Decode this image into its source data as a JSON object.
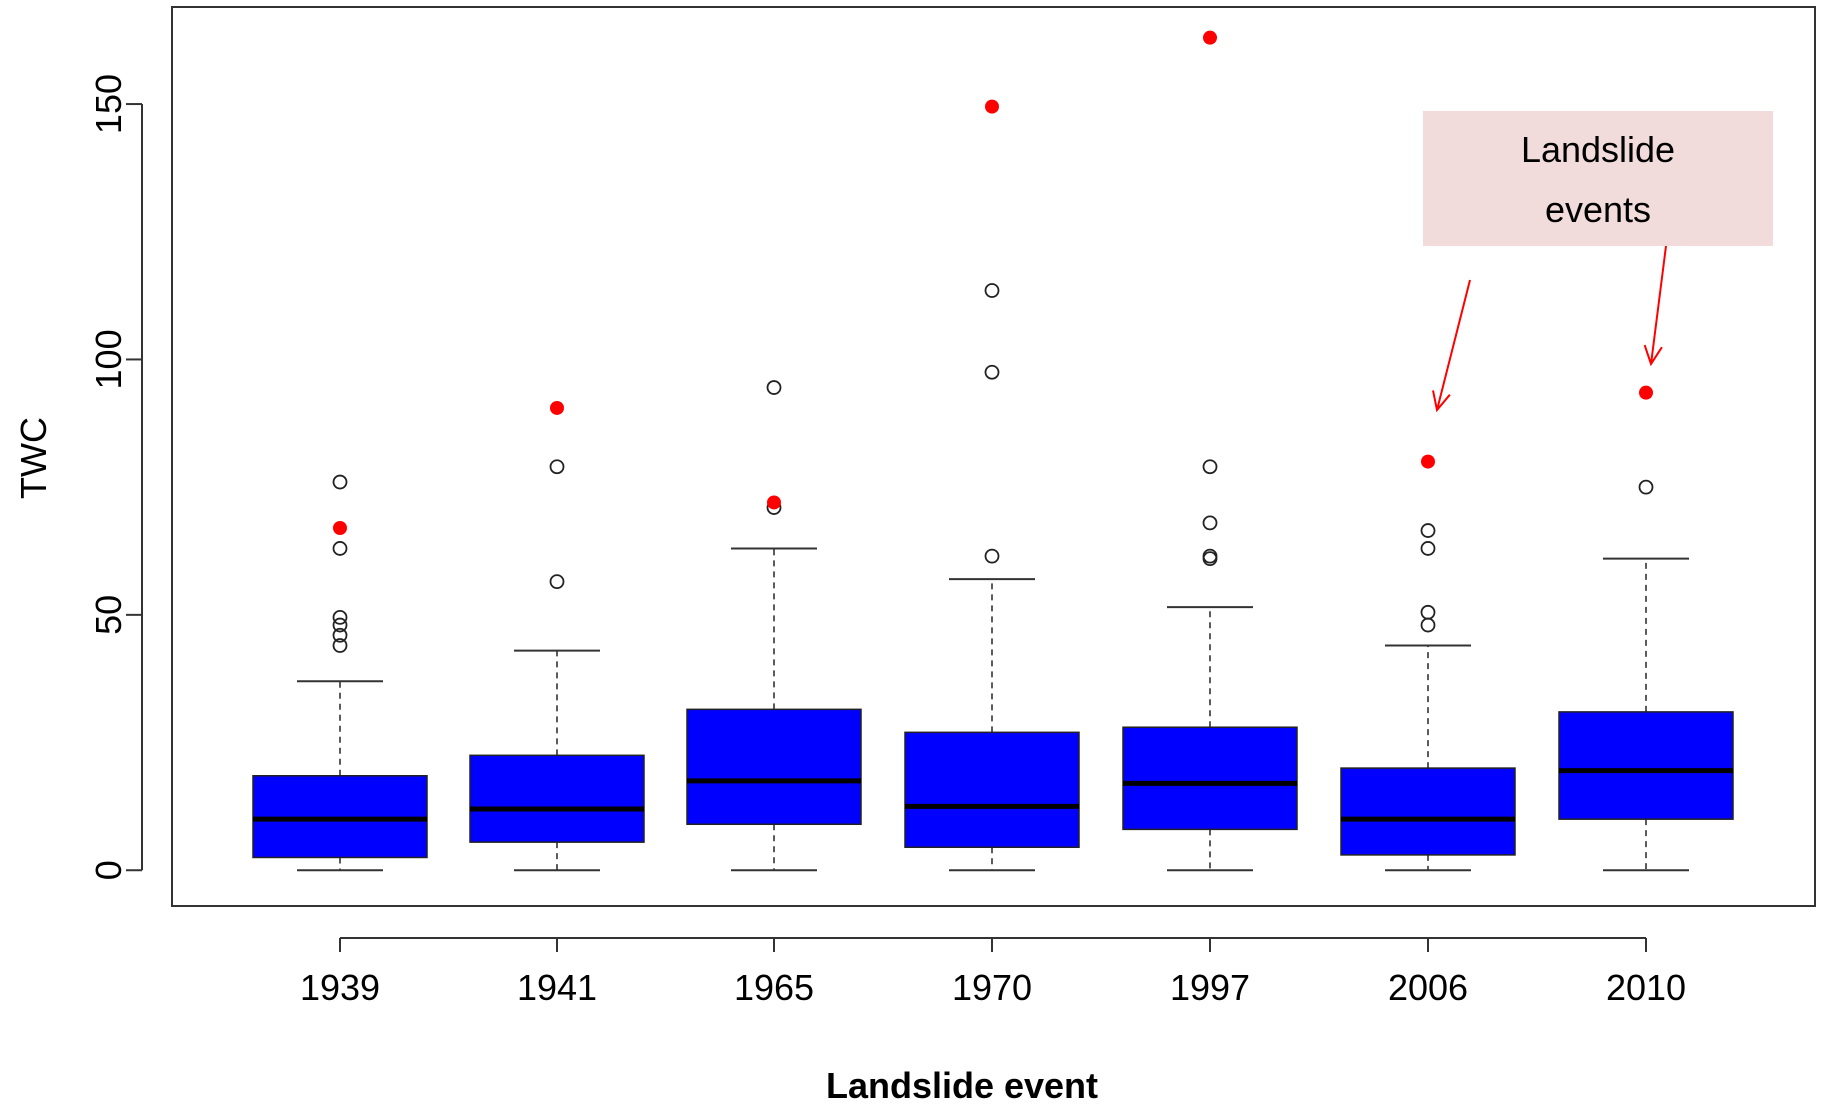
{
  "chart_data": {
    "type": "boxplot",
    "xlabel": "Landslide event",
    "ylabel": "TWC",
    "ylim": [
      -7,
      169
    ],
    "yticks": [
      0,
      50,
      100,
      150
    ],
    "grid": false,
    "box_color": "#0000ff",
    "highlight_color": "#ff0000",
    "categories": [
      "1939",
      "1941",
      "1965",
      "1970",
      "1997",
      "2006",
      "2010"
    ],
    "boxes": [
      {
        "category": "1939",
        "min": 0,
        "q1": 2.5,
        "median": 10,
        "q3": 18.5,
        "whisker_high": 37,
        "outliers": [
          76,
          63,
          49.5,
          48,
          46,
          44
        ],
        "highlight": 67
      },
      {
        "category": "1941",
        "min": 0,
        "q1": 5.5,
        "median": 12,
        "q3": 22.5,
        "whisker_high": 43,
        "outliers": [
          79,
          56.5
        ],
        "highlight": 90.5
      },
      {
        "category": "1965",
        "min": 0,
        "q1": 9,
        "median": 17.5,
        "q3": 31.5,
        "whisker_high": 63,
        "outliers": [
          94.5,
          71
        ],
        "highlight": 72
      },
      {
        "category": "1970",
        "min": 0,
        "q1": 4.5,
        "median": 12.5,
        "q3": 27,
        "whisker_high": 57,
        "outliers": [
          113.5,
          97.5,
          61.5
        ],
        "highlight": 149.5
      },
      {
        "category": "1997",
        "min": 0,
        "q1": 8,
        "median": 17,
        "q3": 28,
        "whisker_high": 51.5,
        "outliers": [
          79,
          68,
          61.5,
          61
        ],
        "highlight": 163
      },
      {
        "category": "2006",
        "min": 0,
        "q1": 3,
        "median": 10,
        "q3": 20,
        "whisker_high": 44,
        "outliers": [
          66.5,
          63,
          50.5,
          48
        ],
        "highlight": 80
      },
      {
        "category": "2010",
        "min": 0,
        "q1": 10,
        "median": 19.5,
        "q3": 31,
        "whisker_high": 61,
        "outliers": [
          75
        ],
        "highlight": 93.5
      }
    ],
    "annotation": {
      "text_line1": "Landslide",
      "text_line2": "events",
      "targets": [
        "2006",
        "2010"
      ],
      "box_color": "#f2dcdb",
      "arrow_color": "#ff0000"
    }
  }
}
